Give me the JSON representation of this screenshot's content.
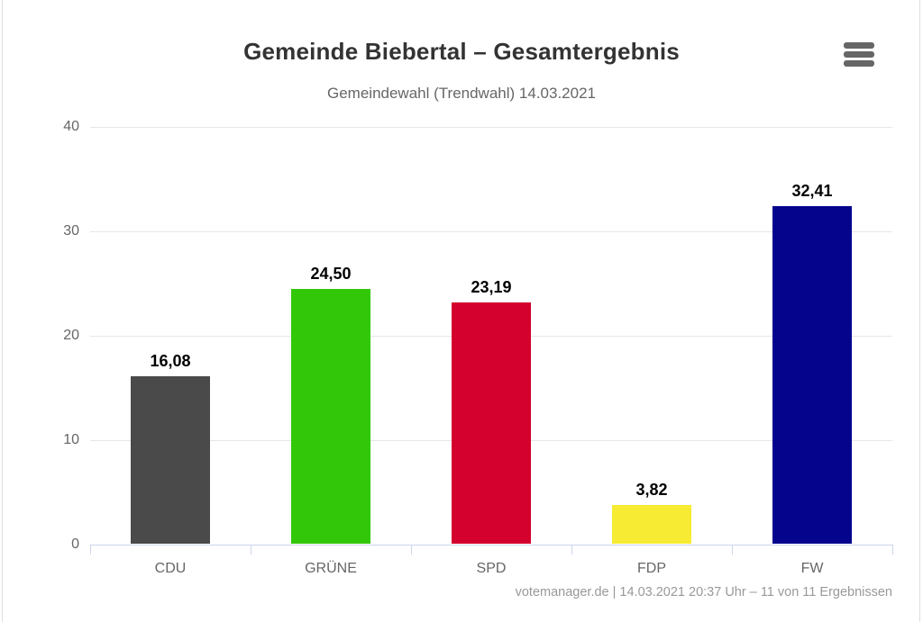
{
  "chart_data": {
    "type": "bar",
    "title": "Gemeinde Biebertal – Gesamtergebnis",
    "subtitle": "Gemeindewahl (Trendwahl) 14.03.2021",
    "categories": [
      "CDU",
      "GRÜNE",
      "SPD",
      "FDP",
      "FW"
    ],
    "values": [
      16.08,
      24.5,
      23.19,
      3.82,
      32.41
    ],
    "value_labels": [
      "16,08",
      "24,50",
      "23,19",
      "3,82",
      "32,41"
    ],
    "bar_colors": [
      "#4a4a4a",
      "#33c70a",
      "#d4002d",
      "#f7eb33",
      "#04048c"
    ],
    "ylim": [
      0,
      40
    ],
    "yticks": [
      0,
      10,
      20,
      30,
      40
    ],
    "xlabel": "",
    "ylabel": "",
    "grid": true,
    "legend": false
  },
  "footer": {
    "credits": "votemanager.de | 14.03.2021 20:37 Uhr – 11 von 11 Ergebnissen"
  },
  "menu": {
    "name": "hamburger-icon"
  },
  "colors": {
    "grid": "#e6e6e6",
    "axis": "#ccd6eb",
    "title": "#333333",
    "subtitle": "#666666",
    "tick_label": "#666666",
    "value_label": "#000000",
    "credits": "#999999",
    "menu_icon": "#666666",
    "frame_border": "#dedede"
  }
}
